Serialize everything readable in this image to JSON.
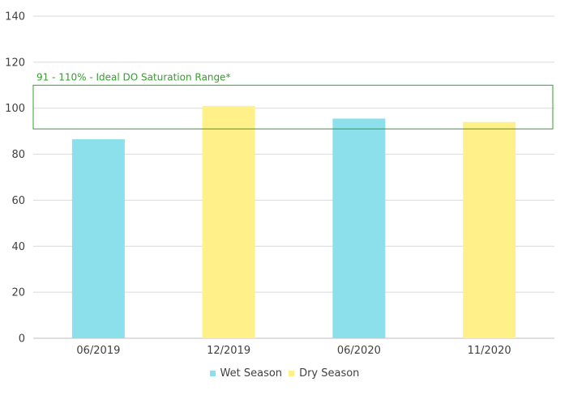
{
  "chart_data": {
    "type": "bar",
    "categories": [
      "06/2019",
      "12/2019",
      "06/2020",
      "11/2020"
    ],
    "values": [
      86.5,
      101,
      95.5,
      94
    ],
    "bar_series": [
      "Wet Season",
      "Dry Season",
      "Wet Season",
      "Dry Season"
    ],
    "series": [
      {
        "name": "Wet Season",
        "color": "#8BE0EC"
      },
      {
        "name": "Dry Season",
        "color": "#FFF08A"
      }
    ],
    "ylim": [
      0,
      140
    ],
    "yticks": [
      0,
      20,
      40,
      60,
      80,
      100,
      120,
      140
    ],
    "grid": true,
    "legend_position": "bottom",
    "band": {
      "label": "91 - 110% - Ideal DO Saturation Range*",
      "from": 91,
      "to": 110,
      "color": "#33A02C"
    }
  }
}
